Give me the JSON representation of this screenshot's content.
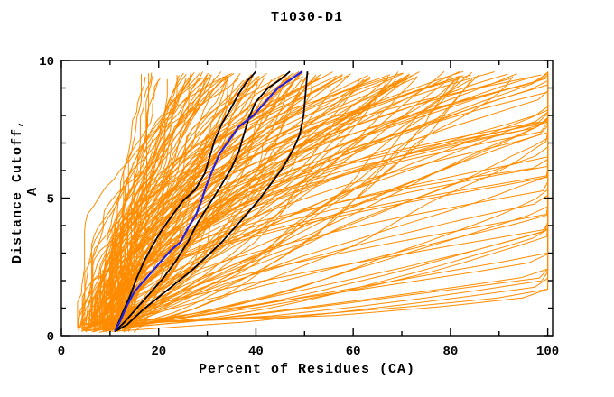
{
  "chart_data": {
    "type": "line",
    "title": "T1030-D1",
    "xlabel": "Percent of Residues (CA)",
    "ylabel": "Distance Cutoff, A",
    "xlim": [
      0,
      101
    ],
    "ylim": [
      0,
      10
    ],
    "grid": false,
    "legend": "none",
    "axis_color": "#000000",
    "x_ticks": {
      "minor_step": 10,
      "major": [
        0,
        20,
        40,
        60,
        80,
        100
      ],
      "labels": [
        "0",
        "20",
        "40",
        "60",
        "80",
        "100"
      ]
    },
    "y_ticks": {
      "minor_step": 1,
      "major": [
        0,
        5,
        10
      ],
      "labels": [
        "0",
        "5",
        "10"
      ]
    },
    "series": [
      {
        "name": "prediction-ensemble",
        "color": "#ff8c00",
        "width": 1,
        "generated": {
          "count": 175,
          "seed": 20301,
          "y_start": 0.12,
          "y_end": 9.6,
          "y_step": 0.32,
          "x_start_range": [
            3,
            14
          ],
          "x_top_base": 17,
          "x_top_lin": 95,
          "x_top_tail": 260,
          "x_top_tail_pow": 6,
          "exp_base": 0.55,
          "exp_scale": 2.2,
          "exp_pow": 1.3,
          "jitter": 0.9,
          "wobble": 1.4,
          "x_clip": 100
        }
      },
      {
        "name": "model-black-1",
        "color": "#000000",
        "width": 1.8,
        "points": [
          [
            11,
            0.15
          ],
          [
            12.5,
            0.8
          ],
          [
            14,
            1.4
          ],
          [
            15.5,
            2.1
          ],
          [
            17,
            2.7
          ],
          [
            18.5,
            3.2
          ],
          [
            20.5,
            3.8
          ],
          [
            22.5,
            4.3
          ],
          [
            25,
            4.9
          ],
          [
            27.5,
            5.3
          ],
          [
            29.5,
            5.9
          ],
          [
            30.5,
            6.5
          ],
          [
            31.5,
            7.1
          ],
          [
            33,
            7.7
          ],
          [
            35,
            8.3
          ],
          [
            36.5,
            8.8
          ],
          [
            38,
            9.2
          ],
          [
            40,
            9.6
          ]
        ]
      },
      {
        "name": "model-black-2",
        "color": "#000000",
        "width": 1.8,
        "points": [
          [
            11,
            0.15
          ],
          [
            13,
            0.5
          ],
          [
            15.5,
            1.0
          ],
          [
            18,
            1.5
          ],
          [
            21,
            2.1
          ],
          [
            23.5,
            2.7
          ],
          [
            26,
            3.4
          ],
          [
            28,
            4.1
          ],
          [
            30.5,
            4.8
          ],
          [
            33,
            5.5
          ],
          [
            35,
            6.1
          ],
          [
            36.5,
            6.7
          ],
          [
            37.5,
            7.3
          ],
          [
            38.5,
            7.9
          ],
          [
            40,
            8.5
          ],
          [
            42.5,
            9.0
          ],
          [
            45,
            9.3
          ],
          [
            47,
            9.6
          ]
        ]
      },
      {
        "name": "model-black-3",
        "color": "#000000",
        "width": 1.8,
        "points": [
          [
            11,
            0.15
          ],
          [
            13.5,
            0.4
          ],
          [
            16.5,
            0.9
          ],
          [
            20,
            1.4
          ],
          [
            23.5,
            1.9
          ],
          [
            27,
            2.4
          ],
          [
            30,
            2.9
          ],
          [
            33,
            3.4
          ],
          [
            35.5,
            3.9
          ],
          [
            38,
            4.4
          ],
          [
            40.5,
            4.9
          ],
          [
            43,
            5.5
          ],
          [
            45.5,
            6.1
          ],
          [
            47.5,
            6.7
          ],
          [
            49,
            7.3
          ],
          [
            49.8,
            8.0
          ],
          [
            50.2,
            8.8
          ],
          [
            50.6,
            9.6
          ]
        ]
      },
      {
        "name": "model-blue",
        "color": "#2222dd",
        "width": 2.2,
        "points": [
          [
            11,
            0.15
          ],
          [
            12,
            0.5
          ],
          [
            13.5,
            1.1
          ],
          [
            15,
            1.6
          ],
          [
            17.5,
            2.1
          ],
          [
            20,
            2.6
          ],
          [
            22.5,
            3.1
          ],
          [
            24.5,
            3.4
          ],
          [
            26,
            3.9
          ],
          [
            27.7,
            4.4
          ],
          [
            28.8,
            4.9
          ],
          [
            29.7,
            5.4
          ],
          [
            30.8,
            5.9
          ],
          [
            32.5,
            6.6
          ],
          [
            34.5,
            7.1
          ],
          [
            36.5,
            7.6
          ],
          [
            39.5,
            8.0
          ],
          [
            42,
            8.5
          ],
          [
            44.5,
            9.0
          ],
          [
            47.5,
            9.35
          ],
          [
            49.5,
            9.6
          ]
        ]
      }
    ]
  }
}
